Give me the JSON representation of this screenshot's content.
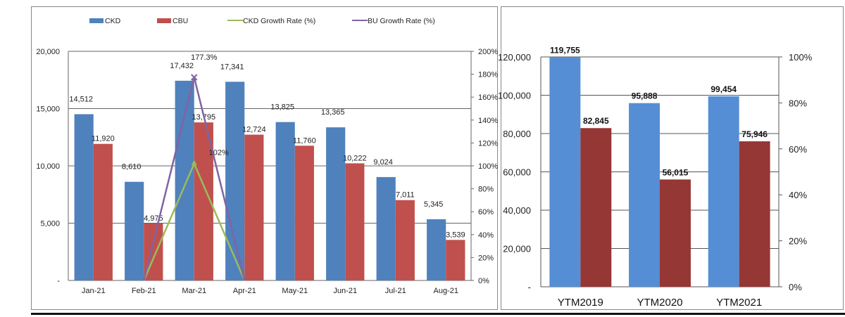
{
  "colors": {
    "ckd": "#4f81bd",
    "cbu": "#c0504d",
    "ckd_growth": "#9bbb59",
    "cbu_growth": "#8064a2",
    "ytm_a": "#558ed5",
    "ytm_b": "#953735"
  },
  "chart_data": [
    {
      "type": "bar",
      "categories": [
        "Jan-21",
        "Feb-21",
        "Mar-21",
        "Apr-21",
        "May-21",
        "Jun-21",
        "Jul-21",
        "Aug-21"
      ],
      "series": [
        {
          "name": "CKD",
          "type": "bar",
          "values": [
            14512,
            8610,
            17432,
            17341,
            13825,
            13365,
            9024,
            5345
          ],
          "labels": [
            "14,512",
            "8,610",
            "17,432",
            "17,341",
            "13,825",
            "13,365",
            "9,024",
            "5,345"
          ]
        },
        {
          "name": "CBU",
          "type": "bar",
          "values": [
            11920,
            4975,
            13795,
            12724,
            11760,
            10222,
            7011,
            3539
          ],
          "labels": [
            "11,920",
            "4,975",
            "13,795",
            "12,724",
            "11,760",
            "10,222",
            "7,011",
            "3,539"
          ]
        },
        {
          "name": "CKD Growth Rate (%)",
          "type": "line",
          "axis": "right",
          "points": [
            [
              "Feb-21",
              0
            ],
            [
              "Mar-21",
              102
            ],
            [
              "Apr-21",
              0
            ]
          ],
          "label": "102%"
        },
        {
          "name": "BU Growth Rate (%)",
          "type": "line",
          "axis": "right",
          "points": [
            [
              "Feb-21",
              0
            ],
            [
              "Mar-21",
              177.3
            ],
            [
              "Apr-21",
              0
            ]
          ],
          "label": "177.3%"
        }
      ],
      "ylim": [
        0,
        20000
      ],
      "yticks": [
        "-",
        "5,000",
        "10,000",
        "15,000",
        "20,000"
      ],
      "y2lim": [
        0,
        200
      ],
      "y2ticks": [
        "0%",
        "20%",
        "40%",
        "60%",
        "80%",
        "100%",
        "120%",
        "140%",
        "160%",
        "180%",
        "200%"
      ],
      "legend": "top",
      "grid": true
    },
    {
      "type": "bar",
      "categories": [
        "YTM2019",
        "YTM2020",
        "YTM2021"
      ],
      "series": [
        {
          "values": [
            119755,
            95888,
            99454
          ],
          "labels": [
            "119,755",
            "95,888",
            "99,454"
          ]
        },
        {
          "values": [
            82845,
            56015,
            75946
          ],
          "labels": [
            "82,845",
            "56,015",
            "75,946"
          ]
        }
      ],
      "ylim": [
        0,
        120000
      ],
      "yticks": [
        "-",
        "20,000",
        "40,000",
        "60,000",
        "80,000",
        "100,000",
        "120,000"
      ],
      "y2lim": [
        0,
        100
      ],
      "y2ticks": [
        "0%",
        "20%",
        "40%",
        "60%",
        "80%",
        "100%"
      ],
      "grid": true
    }
  ]
}
